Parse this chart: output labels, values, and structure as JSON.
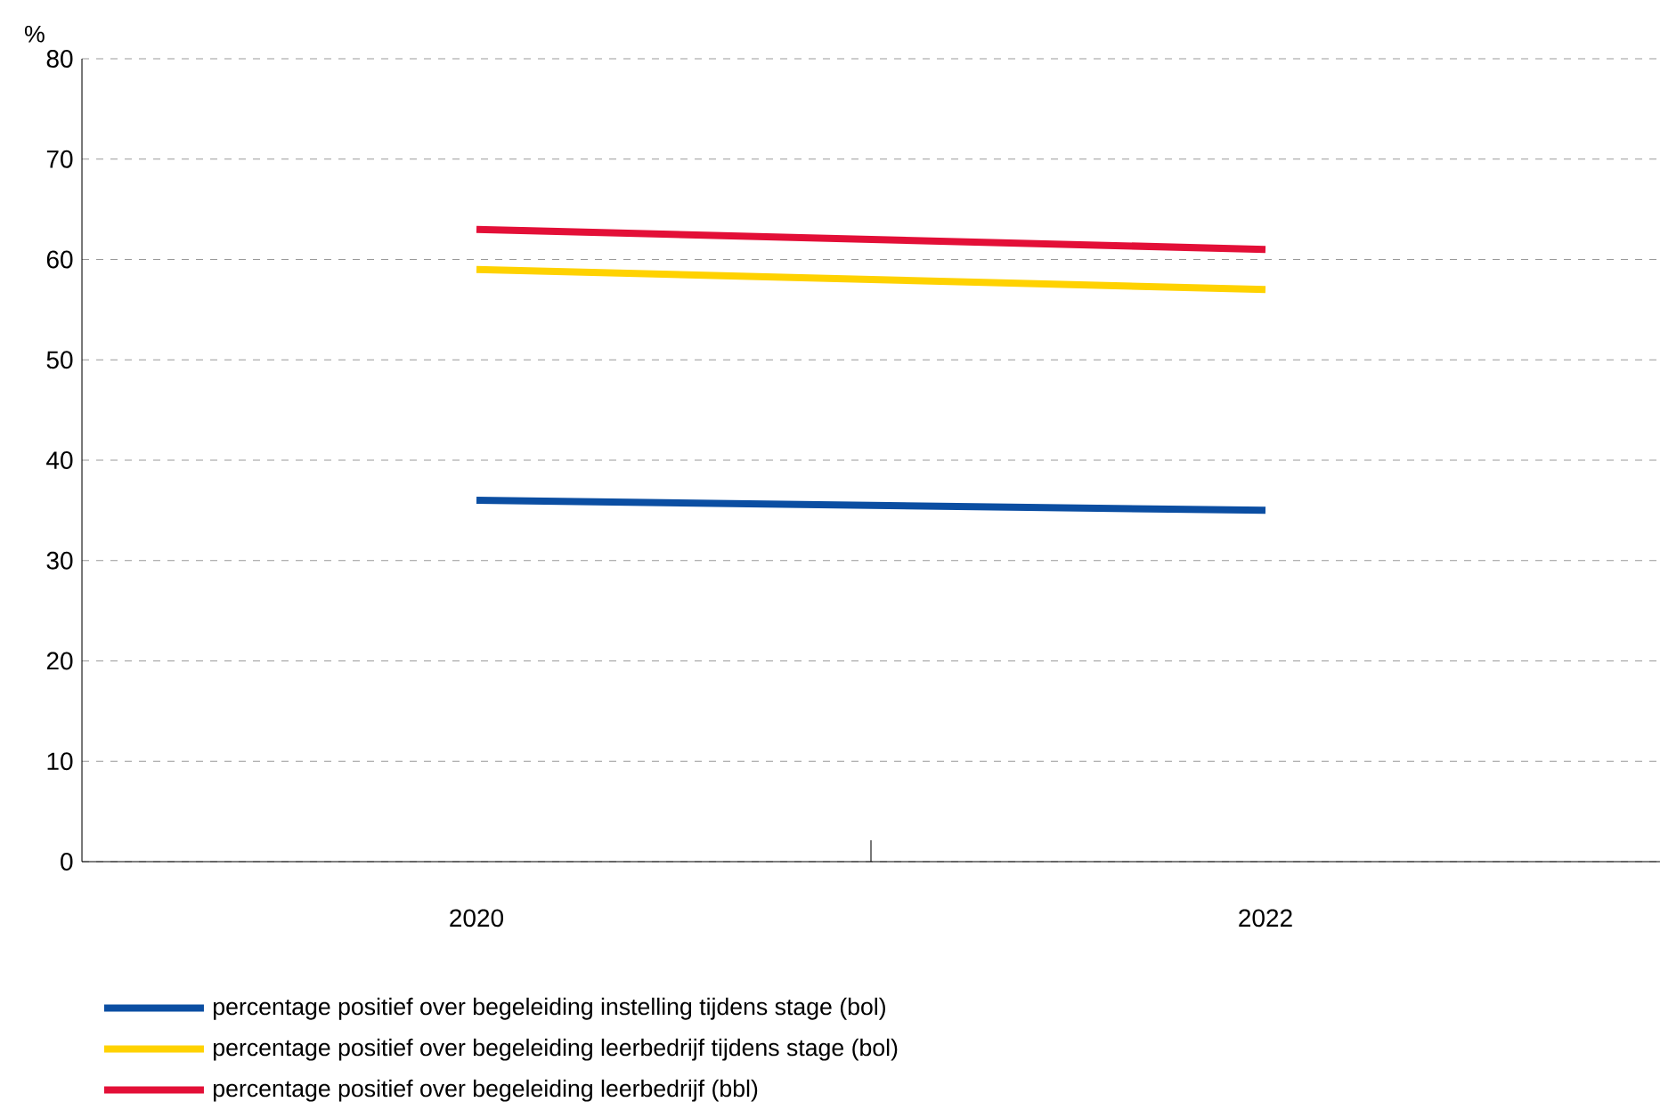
{
  "chart_data": {
    "type": "line",
    "ylabel": "%",
    "categories": [
      "2020",
      "2022"
    ],
    "series": [
      {
        "name": "percentage positief over begeleiding instelling tijdens stage (bol)",
        "color": "#0b4ea2",
        "values": [
          36,
          35
        ]
      },
      {
        "name": "percentage positief over begeleiding leerbedrijf tijdens stage (bol)",
        "color": "#ffd200",
        "values": [
          59,
          57
        ]
      },
      {
        "name": "percentage positief over begeleiding leerbedrijf (bbl)",
        "color": "#e30f37",
        "values": [
          63,
          61
        ]
      }
    ],
    "ylim": [
      0,
      80
    ],
    "yticks": [
      0,
      10,
      20,
      30,
      40,
      50,
      60,
      70,
      80
    ],
    "grid": "y",
    "legend": "bottom",
    "marker": "none",
    "line_style": "solid"
  }
}
